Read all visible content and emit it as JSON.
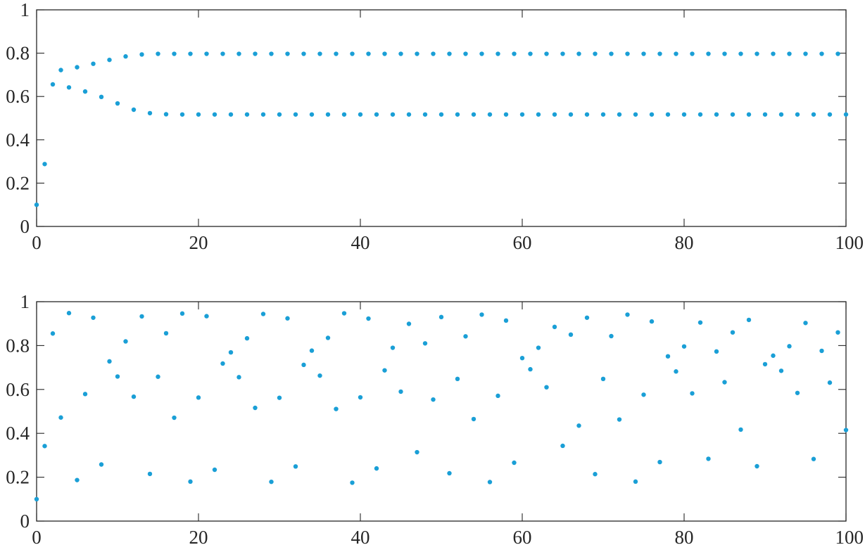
{
  "style": {
    "marker_color": "#1a9fd6",
    "axis_color": "#262626"
  },
  "chart_data": [
    {
      "type": "scatter",
      "title": "",
      "xlabel": "",
      "ylabel": "",
      "xlim": [
        0,
        100
      ],
      "ylim": [
        0,
        1
      ],
      "grid": false,
      "legend": "none",
      "xticks": [
        0,
        20,
        40,
        60,
        80,
        100
      ],
      "yticks": [
        0,
        0.2,
        0.4,
        0.6,
        0.8,
        1
      ],
      "xtick_labels": [
        "0",
        "20",
        "40",
        "60",
        "80",
        "100"
      ],
      "ytick_labels": [
        "0",
        "0.2",
        "0.4",
        "0.6",
        "0.8",
        "1"
      ],
      "series": [
        {
          "x": [
            0,
            1,
            2,
            3,
            4,
            5,
            6,
            7,
            8,
            9,
            10,
            11,
            12,
            13,
            14,
            15,
            16,
            17,
            18,
            19,
            20,
            21,
            22,
            23,
            24,
            25,
            26,
            27,
            28,
            29,
            30,
            31,
            32,
            33,
            34,
            35,
            36,
            37,
            38,
            39,
            40,
            41,
            42,
            43,
            44,
            45,
            46,
            47,
            48,
            49,
            50,
            51,
            52,
            53,
            54,
            55,
            56,
            57,
            58,
            59,
            60,
            61,
            62,
            63,
            64,
            65,
            66,
            67,
            68,
            69,
            70,
            71,
            72,
            73,
            74,
            75,
            76,
            77,
            78,
            79,
            80,
            81,
            82,
            83,
            84,
            85,
            86,
            87,
            88,
            89,
            90,
            91,
            92,
            93,
            94,
            95,
            96,
            97,
            98,
            99,
            100
          ],
          "y": [
            0.1,
            0.288,
            0.656,
            0.722,
            0.642,
            0.735,
            0.623,
            0.751,
            0.598,
            0.769,
            0.568,
            0.785,
            0.539,
            0.794,
            0.523,
            0.797,
            0.518,
            0.797,
            0.517,
            0.797,
            0.517,
            0.797,
            0.517,
            0.797,
            0.517,
            0.797,
            0.517,
            0.797,
            0.517,
            0.797,
            0.517,
            0.797,
            0.517,
            0.797,
            0.517,
            0.797,
            0.517,
            0.797,
            0.517,
            0.797,
            0.517,
            0.797,
            0.517,
            0.797,
            0.517,
            0.797,
            0.517,
            0.797,
            0.517,
            0.797,
            0.517,
            0.797,
            0.517,
            0.797,
            0.517,
            0.797,
            0.517,
            0.797,
            0.517,
            0.797,
            0.517,
            0.797,
            0.517,
            0.797,
            0.517,
            0.797,
            0.517,
            0.797,
            0.517,
            0.797,
            0.517,
            0.797,
            0.517,
            0.797,
            0.517,
            0.797,
            0.517,
            0.797,
            0.517,
            0.797,
            0.517,
            0.797,
            0.517,
            0.797,
            0.517,
            0.797,
            0.517,
            0.797,
            0.517,
            0.797,
            0.517,
            0.797,
            0.517,
            0.797,
            0.517,
            0.797,
            0.517,
            0.797,
            0.517,
            0.797,
            0.517
          ]
        }
      ]
    },
    {
      "type": "scatter",
      "title": "",
      "xlabel": "",
      "ylabel": "",
      "xlim": [
        0,
        100
      ],
      "ylim": [
        0,
        1
      ],
      "grid": false,
      "legend": "none",
      "xticks": [
        0,
        20,
        40,
        60,
        80,
        100
      ],
      "yticks": [
        0,
        0.2,
        0.4,
        0.6,
        0.8,
        1
      ],
      "xtick_labels": [
        "0",
        "20",
        "40",
        "60",
        "80",
        "100"
      ],
      "ytick_labels": [
        "0",
        "0.2",
        "0.4",
        "0.6",
        "0.8",
        "1"
      ],
      "series": [
        {
          "x": [
            0,
            1,
            2,
            3,
            4,
            5,
            6,
            7,
            8,
            9,
            10,
            11,
            12,
            13,
            14,
            15,
            16,
            17,
            18,
            19,
            20,
            21,
            22,
            23,
            24,
            25,
            26,
            27,
            28,
            29,
            30,
            31,
            32,
            33,
            34,
            35,
            36,
            37,
            38,
            39,
            40,
            41,
            42,
            43,
            44,
            45,
            46,
            47,
            48,
            49,
            50,
            51,
            52,
            53,
            54,
            55,
            56,
            57,
            58,
            59,
            60,
            61,
            62,
            63,
            64,
            65,
            66,
            67,
            68,
            69,
            70,
            71,
            72,
            73,
            74,
            75,
            76,
            77,
            78,
            79,
            80,
            81,
            82,
            83,
            84,
            85,
            86,
            87,
            88,
            89,
            90,
            91,
            92,
            93,
            94,
            95,
            96,
            97,
            98,
            99,
            100
          ],
          "y": [
            0.1,
            0.342,
            0.855,
            0.472,
            0.948,
            0.187,
            0.579,
            0.927,
            0.258,
            0.728,
            0.659,
            0.819,
            0.567,
            0.933,
            0.215,
            0.658,
            0.856,
            0.471,
            0.946,
            0.18,
            0.563,
            0.934,
            0.234,
            0.718,
            0.769,
            0.656,
            0.833,
            0.516,
            0.944,
            0.179,
            0.562,
            0.924,
            0.249,
            0.712,
            0.777,
            0.663,
            0.835,
            0.511,
            0.947,
            0.175,
            0.564,
            0.923,
            0.24,
            0.687,
            0.79,
            0.59,
            0.899,
            0.314,
            0.81,
            0.554,
            0.93,
            0.218,
            0.648,
            0.842,
            0.465,
            0.941,
            0.178,
            0.571,
            0.914,
            0.266,
            0.743,
            0.692,
            0.79,
            0.61,
            0.885,
            0.343,
            0.85,
            0.435,
            0.927,
            0.214,
            0.648,
            0.843,
            0.463,
            0.941,
            0.18,
            0.576,
            0.91,
            0.269,
            0.751,
            0.682,
            0.796,
            0.582,
            0.905,
            0.284,
            0.773,
            0.633,
            0.86,
            0.417,
            0.917,
            0.25,
            0.715,
            0.754,
            0.685,
            0.797,
            0.584,
            0.903,
            0.283,
            0.776,
            0.631,
            0.86,
            0.415
          ]
        }
      ]
    }
  ]
}
